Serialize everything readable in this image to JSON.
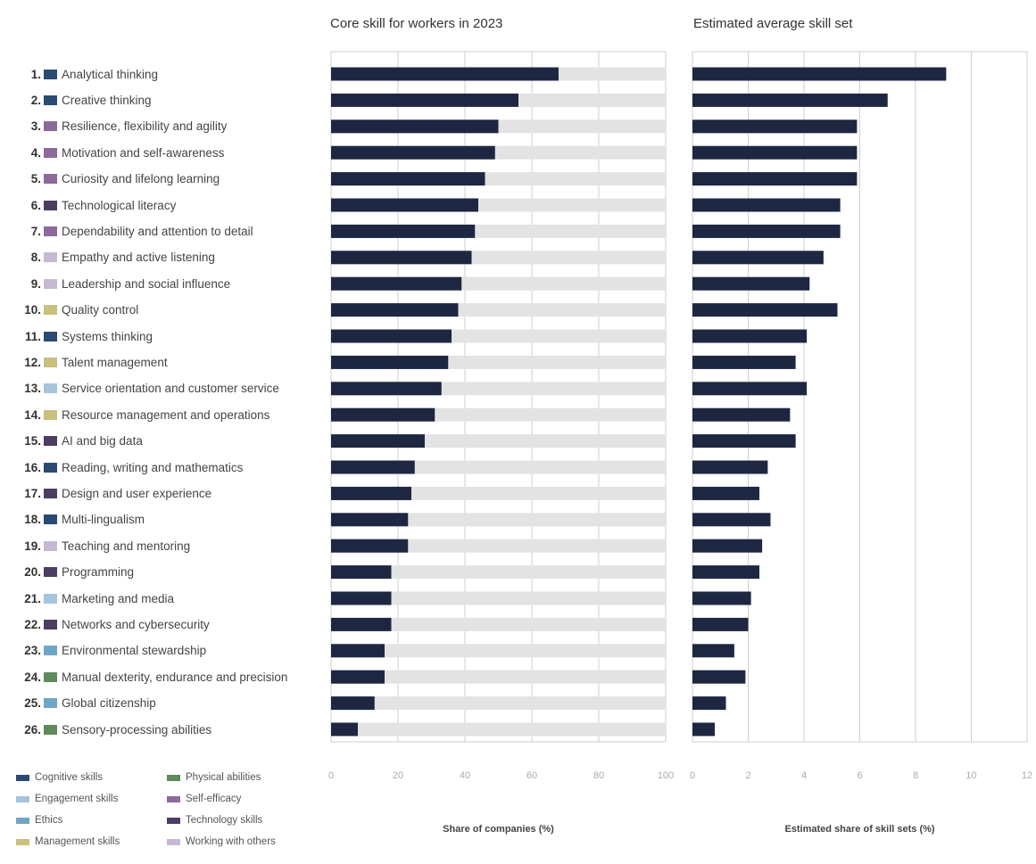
{
  "chart_data": [
    {
      "type": "bar",
      "title": "Core skill for workers in 2023",
      "xlabel": "Share of companies (%)",
      "xlim": [
        0,
        100
      ],
      "xticks": [
        "0",
        "20",
        "40",
        "60",
        "80",
        "100"
      ],
      "grid": true,
      "orientation": "horizontal",
      "categories": [
        "Analytical thinking",
        "Creative thinking",
        "Resilience, flexibility and agility",
        "Motivation and self-awareness",
        "Curiosity and lifelong learning",
        "Technological literacy",
        "Dependability and attention to detail",
        "Empathy and active listening",
        "Leadership and social influence",
        "Quality control",
        "Systems thinking",
        "Talent management",
        "Service orientation and customer service",
        "Resource management and operations",
        "AI and big data",
        "Reading, writing and mathematics",
        "Design and user experience",
        "Multi-lingualism",
        "Teaching and mentoring",
        "Programming",
        "Marketing and media",
        "Networks and cybersecurity",
        "Environmental stewardship",
        "Manual dexterity, endurance and precision",
        "Global citizenship",
        "Sensory-processing abilities"
      ],
      "values": [
        68,
        56,
        50,
        49,
        46,
        44,
        43,
        42,
        39,
        38,
        36,
        35,
        33,
        31,
        28,
        25,
        24,
        23,
        23,
        18,
        18,
        18,
        16,
        16,
        13,
        8
      ],
      "background_value": 100
    },
    {
      "type": "bar",
      "title": "Estimated average skill set",
      "xlabel": "Estimated share of skill sets (%)",
      "xlim": [
        0,
        12
      ],
      "xticks": [
        "0",
        "2",
        "4",
        "6",
        "8",
        "10",
        "12"
      ],
      "grid": true,
      "orientation": "horizontal",
      "values": [
        9.1,
        7.0,
        5.9,
        5.9,
        5.9,
        5.3,
        5.3,
        4.7,
        4.2,
        5.2,
        4.1,
        3.7,
        4.1,
        3.5,
        3.7,
        2.7,
        2.4,
        2.8,
        2.5,
        2.4,
        2.1,
        2.0,
        1.5,
        1.9,
        1.2,
        0.8
      ]
    }
  ],
  "skills": [
    {
      "rank": "1.",
      "name": "Analytical thinking",
      "color": "#2b4a73"
    },
    {
      "rank": "2.",
      "name": "Creative thinking",
      "color": "#2b4a73"
    },
    {
      "rank": "3.",
      "name": "Resilience, flexibility and agility",
      "color": "#8c6a9a"
    },
    {
      "rank": "4.",
      "name": "Motivation and self-awareness",
      "color": "#8c6a9a"
    },
    {
      "rank": "5.",
      "name": "Curiosity and lifelong learning",
      "color": "#8c6a9a"
    },
    {
      "rank": "6.",
      "name": "Technological literacy",
      "color": "#4e3d63"
    },
    {
      "rank": "7.",
      "name": "Dependability and attention to detail",
      "color": "#8c6a9a"
    },
    {
      "rank": "8.",
      "name": "Empathy and active listening",
      "color": "#c6b8d3"
    },
    {
      "rank": "9.",
      "name": "Leadership and social influence",
      "color": "#c6b8d3"
    },
    {
      "rank": "10.",
      "name": "Quality control",
      "color": "#c9c07e"
    },
    {
      "rank": "11.",
      "name": "Systems thinking",
      "color": "#2b4a73"
    },
    {
      "rank": "12.",
      "name": "Talent management",
      "color": "#c9c07e"
    },
    {
      "rank": "13.",
      "name": "Service orientation and customer service",
      "color": "#a7c4dd"
    },
    {
      "rank": "14.",
      "name": "Resource management and operations",
      "color": "#c9c07e"
    },
    {
      "rank": "15.",
      "name": "AI and big data",
      "color": "#4e3d63"
    },
    {
      "rank": "16.",
      "name": "Reading, writing and mathematics",
      "color": "#2b4a73"
    },
    {
      "rank": "17.",
      "name": "Design and user experience",
      "color": "#4e3d63"
    },
    {
      "rank": "18.",
      "name": "Multi-lingualism",
      "color": "#2b4a73"
    },
    {
      "rank": "19.",
      "name": "Teaching and mentoring",
      "color": "#c6b8d3"
    },
    {
      "rank": "20.",
      "name": "Programming",
      "color": "#4e3d63"
    },
    {
      "rank": "21.",
      "name": "Marketing and media",
      "color": "#a7c4dd"
    },
    {
      "rank": "22.",
      "name": "Networks and cybersecurity",
      "color": "#4e3d63"
    },
    {
      "rank": "23.",
      "name": "Environmental stewardship",
      "color": "#6fa6c6"
    },
    {
      "rank": "24.",
      "name": "Manual dexterity, endurance and precision",
      "color": "#5f8a5c"
    },
    {
      "rank": "25.",
      "name": "Global citizenship",
      "color": "#6fa6c6"
    },
    {
      "rank": "26.",
      "name": "Sensory-processing abilities",
      "color": "#5f8a5c"
    }
  ],
  "legend": [
    {
      "label": "Cognitive skills",
      "color": "#2b4a73"
    },
    {
      "label": "Physical abilities",
      "color": "#5f8a5c"
    },
    {
      "label": "Engagement skills",
      "color": "#a7c4dd"
    },
    {
      "label": "Self-efficacy",
      "color": "#8c6a9a"
    },
    {
      "label": "Ethics",
      "color": "#6fa6c6"
    },
    {
      "label": "Technology skills",
      "color": "#4e3d63"
    },
    {
      "label": "Management skills",
      "color": "#c9c07e"
    },
    {
      "label": "Working with others",
      "color": "#c6b8d3"
    }
  ],
  "colors": {
    "bar": "#1e2742",
    "bar_background": "#e3e3e3",
    "grid": "#cfcfcf",
    "tick_text": "#aaaaaa"
  }
}
